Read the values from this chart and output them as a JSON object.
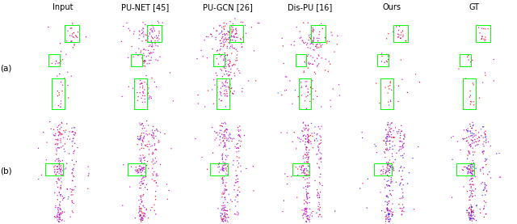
{
  "col_titles": [
    "Input",
    "PU-NET [45]",
    "PU-GCN [26]",
    "Dis-PU [16]",
    "Ours",
    "GT"
  ],
  "row_labels": [
    "(a)",
    "(b)"
  ],
  "n_cols": 6,
  "n_rows": 2,
  "fig_width": 6.4,
  "fig_height": 2.77,
  "bg_color": "#ffffff",
  "panel_bg": "#000000",
  "title_color": "#000000",
  "label_color": "#000000",
  "title_fontsize": 7.0,
  "label_fontsize": 7.5
}
